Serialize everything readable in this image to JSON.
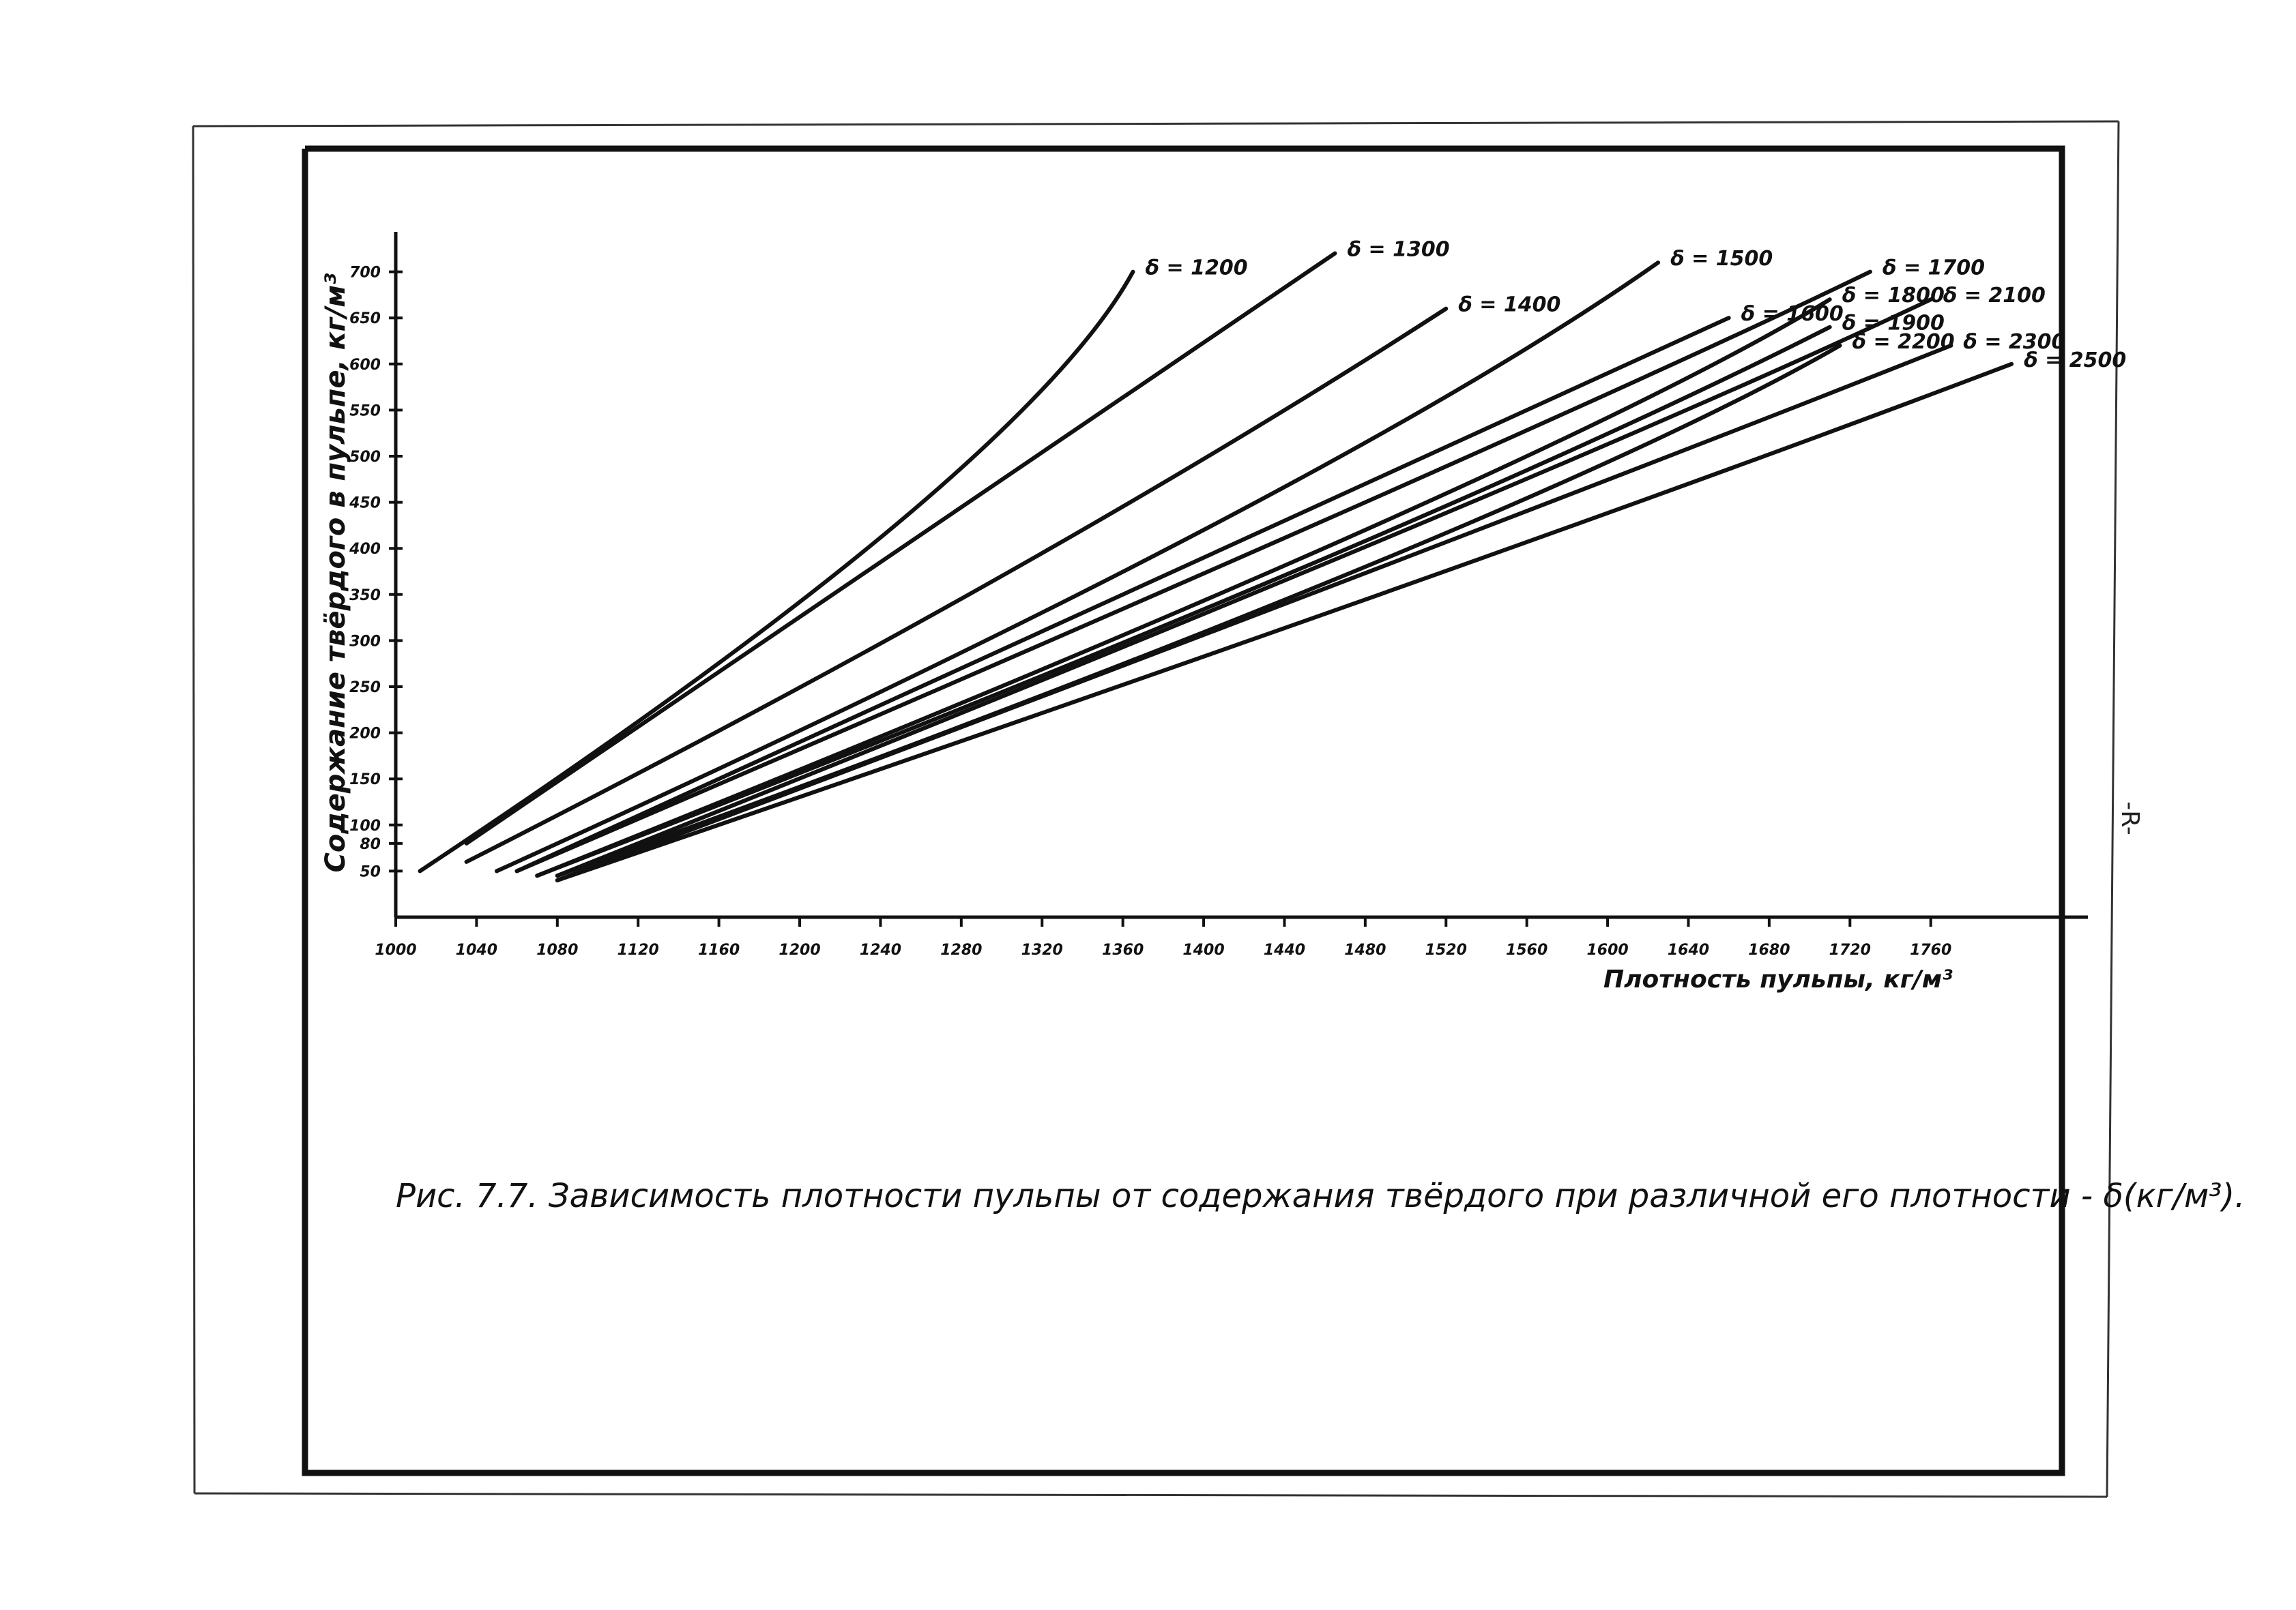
{
  "caption": "Рис. 7.7. Зависимость плотности пульпы от содержания твёрдого при различной его плотности - δ(кг/м³).",
  "margin_note": "-R-",
  "chart_data": {
    "type": "line",
    "title": "",
    "xlabel": "Плотность пульпы, кг/м³",
    "ylabel": "Содержание твёрдого в пульпе, кг/м³",
    "xlim": [
      1000,
      1800
    ],
    "ylim": [
      0,
      750
    ],
    "x_ticks": [
      1000,
      1040,
      1080,
      1120,
      1160,
      1200,
      1240,
      1280,
      1320,
      1360,
      1400,
      1440,
      1480,
      1520,
      1560,
      1600,
      1640,
      1680,
      1720,
      1760
    ],
    "x_tick_labels": [
      "1000",
      "1040",
      "1080",
      "1120",
      "1160",
      "1200",
      "1240",
      "1280",
      "1320",
      "1360",
      "1400",
      "1440",
      "1480",
      "1520",
      "1560",
      "1600",
      "1640",
      "1680",
      "1720",
      "1760"
    ],
    "y_ticks": [
      50,
      80,
      100,
      150,
      200,
      250,
      300,
      350,
      400,
      450,
      500,
      550,
      600,
      650,
      700
    ],
    "y_tick_labels": [
      "50",
      "80",
      "100",
      "150",
      "200",
      "250",
      "300",
      "350",
      "400",
      "450",
      "500",
      "550",
      "600",
      "650",
      "700"
    ],
    "grid": false,
    "legend": "labels at line ends",
    "series": [
      {
        "name": "δ = 1200",
        "x": [
          1012,
          1250,
          1365
        ],
        "y": [
          50,
          430,
          700
        ]
      },
      {
        "name": "δ = 1300",
        "x": [
          1035,
          1250,
          1465
        ],
        "y": [
          80,
          400,
          720
        ]
      },
      {
        "name": "δ = 1400",
        "x": [
          1035,
          1300,
          1520
        ],
        "y": [
          60,
          370,
          660
        ]
      },
      {
        "name": "δ = 1500",
        "x": [
          1050,
          1400,
          1625
        ],
        "y": [
          50,
          420,
          710
        ]
      },
      {
        "name": "δ = 1600",
        "x": [
          1060,
          1450,
          1660
        ],
        "y": [
          50,
          440,
          650
        ]
      },
      {
        "name": "δ = 1700",
        "x": [
          1060,
          1480,
          1730
        ],
        "y": [
          50,
          450,
          700
        ]
      },
      {
        "name": "δ = 1800",
        "x": [
          1070,
          1480,
          1710
        ],
        "y": [
          45,
          420,
          670
        ]
      },
      {
        "name": "δ = 1900",
        "x": [
          1070,
          1450,
          1710
        ],
        "y": [
          45,
          380,
          640
        ]
      },
      {
        "name": "δ = 2100",
        "x": [
          1080,
          1500,
          1760
        ],
        "y": [
          45,
          420,
          670
        ]
      },
      {
        "name": "δ = 2200",
        "x": [
          1080,
          1480,
          1715
        ],
        "y": [
          45,
          380,
          620
        ]
      },
      {
        "name": "δ = 2300",
        "x": [
          1080,
          1500,
          1770
        ],
        "y": [
          40,
          390,
          620
        ]
      },
      {
        "name": "δ = 2500",
        "x": [
          1080,
          1500,
          1800
        ],
        "y": [
          40,
          360,
          600
        ]
      }
    ]
  }
}
